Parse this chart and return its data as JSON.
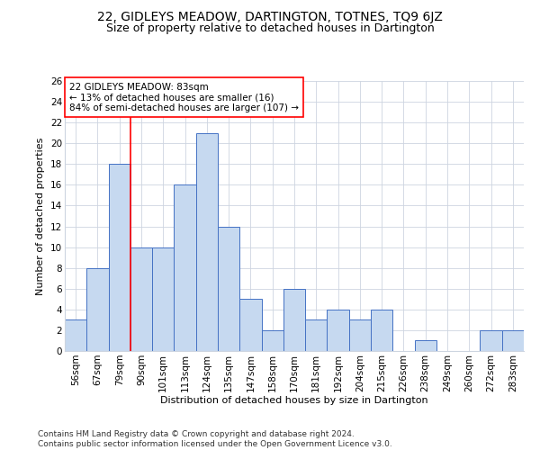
{
  "title": "22, GIDLEYS MEADOW, DARTINGTON, TOTNES, TQ9 6JZ",
  "subtitle": "Size of property relative to detached houses in Dartington",
  "xlabel": "Distribution of detached houses by size in Dartington",
  "ylabel": "Number of detached properties",
  "categories": [
    "56sqm",
    "67sqm",
    "79sqm",
    "90sqm",
    "101sqm",
    "113sqm",
    "124sqm",
    "135sqm",
    "147sqm",
    "158sqm",
    "170sqm",
    "181sqm",
    "192sqm",
    "204sqm",
    "215sqm",
    "226sqm",
    "238sqm",
    "249sqm",
    "260sqm",
    "272sqm",
    "283sqm"
  ],
  "values": [
    3,
    8,
    18,
    10,
    10,
    16,
    21,
    12,
    5,
    2,
    6,
    3,
    4,
    3,
    4,
    0,
    1,
    0,
    0,
    2,
    2
  ],
  "bar_color": "#c6d9f0",
  "bar_edge_color": "#4472c4",
  "vline_x_index": 2,
  "vline_color": "red",
  "annotation_text": "22 GIDLEYS MEADOW: 83sqm\n← 13% of detached houses are smaller (16)\n84% of semi-detached houses are larger (107) →",
  "annotation_box_color": "white",
  "annotation_box_edge_color": "red",
  "ylim": [
    0,
    26
  ],
  "yticks": [
    0,
    2,
    4,
    6,
    8,
    10,
    12,
    14,
    16,
    18,
    20,
    22,
    24,
    26
  ],
  "footer": "Contains HM Land Registry data © Crown copyright and database right 2024.\nContains public sector information licensed under the Open Government Licence v3.0.",
  "background_color": "#ffffff",
  "grid_color": "#cdd5e0",
  "title_fontsize": 10,
  "subtitle_fontsize": 9,
  "xlabel_fontsize": 8,
  "ylabel_fontsize": 8,
  "tick_fontsize": 7.5,
  "annotation_fontsize": 7.5,
  "footer_fontsize": 6.5
}
